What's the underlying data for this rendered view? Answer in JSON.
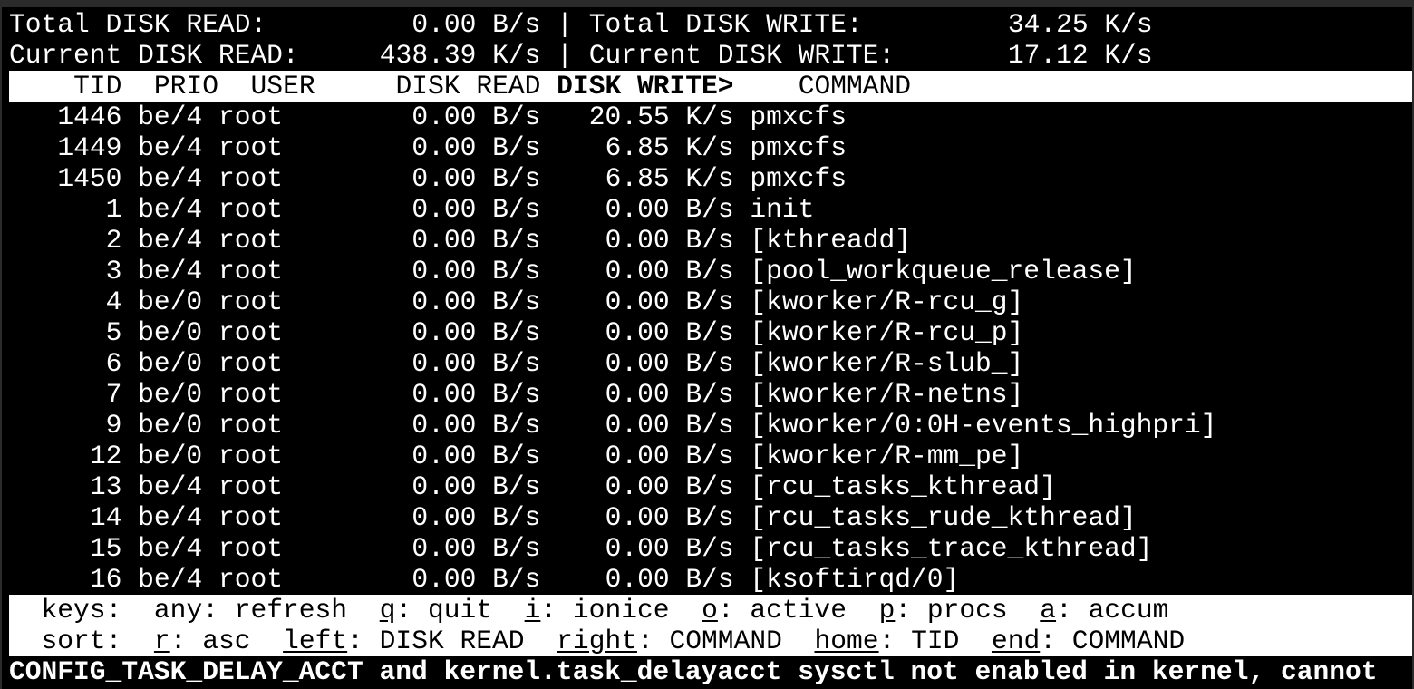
{
  "summary": {
    "total_read_label": "Total DISK READ:",
    "total_read": "0.00 B/s",
    "total_write_label": "Total DISK WRITE:",
    "total_write": "34.25 K/s",
    "current_read_label": "Current DISK READ:",
    "current_read": "438.39 K/s",
    "current_write_label": "Current DISK WRITE:",
    "current_write": "17.12 K/s",
    "separator": "|"
  },
  "columns": {
    "tid": "TID",
    "prio": "PRIO",
    "user": "USER",
    "read": "DISK READ",
    "write": "DISK WRITE>",
    "command": "COMMAND"
  },
  "rows": [
    {
      "tid": "1446",
      "prio": "be/4",
      "user": "root",
      "read": "0.00 B/s",
      "write": "20.55 K/s",
      "command": "pmxcfs"
    },
    {
      "tid": "1449",
      "prio": "be/4",
      "user": "root",
      "read": "0.00 B/s",
      "write": "6.85 K/s",
      "command": "pmxcfs"
    },
    {
      "tid": "1450",
      "prio": "be/4",
      "user": "root",
      "read": "0.00 B/s",
      "write": "6.85 K/s",
      "command": "pmxcfs"
    },
    {
      "tid": "1",
      "prio": "be/4",
      "user": "root",
      "read": "0.00 B/s",
      "write": "0.00 B/s",
      "command": "init"
    },
    {
      "tid": "2",
      "prio": "be/4",
      "user": "root",
      "read": "0.00 B/s",
      "write": "0.00 B/s",
      "command": "[kthreadd]"
    },
    {
      "tid": "3",
      "prio": "be/4",
      "user": "root",
      "read": "0.00 B/s",
      "write": "0.00 B/s",
      "command": "[pool_workqueue_release]"
    },
    {
      "tid": "4",
      "prio": "be/0",
      "user": "root",
      "read": "0.00 B/s",
      "write": "0.00 B/s",
      "command": "[kworker/R-rcu_g]"
    },
    {
      "tid": "5",
      "prio": "be/0",
      "user": "root",
      "read": "0.00 B/s",
      "write": "0.00 B/s",
      "command": "[kworker/R-rcu_p]"
    },
    {
      "tid": "6",
      "prio": "be/0",
      "user": "root",
      "read": "0.00 B/s",
      "write": "0.00 B/s",
      "command": "[kworker/R-slub_]"
    },
    {
      "tid": "7",
      "prio": "be/0",
      "user": "root",
      "read": "0.00 B/s",
      "write": "0.00 B/s",
      "command": "[kworker/R-netns]"
    },
    {
      "tid": "9",
      "prio": "be/0",
      "user": "root",
      "read": "0.00 B/s",
      "write": "0.00 B/s",
      "command": "[kworker/0:0H-events_highpri]"
    },
    {
      "tid": "12",
      "prio": "be/0",
      "user": "root",
      "read": "0.00 B/s",
      "write": "0.00 B/s",
      "command": "[kworker/R-mm_pe]"
    },
    {
      "tid": "13",
      "prio": "be/4",
      "user": "root",
      "read": "0.00 B/s",
      "write": "0.00 B/s",
      "command": "[rcu_tasks_kthread]"
    },
    {
      "tid": "14",
      "prio": "be/4",
      "user": "root",
      "read": "0.00 B/s",
      "write": "0.00 B/s",
      "command": "[rcu_tasks_rude_kthread]"
    },
    {
      "tid": "15",
      "prio": "be/4",
      "user": "root",
      "read": "0.00 B/s",
      "write": "0.00 B/s",
      "command": "[rcu_tasks_trace_kthread]"
    },
    {
      "tid": "16",
      "prio": "be/4",
      "user": "root",
      "read": "0.00 B/s",
      "write": "0.00 B/s",
      "command": "[ksoftirqd/0]"
    }
  ],
  "keys": {
    "label": "keys:",
    "items": [
      {
        "key": "any",
        "desc": ": refresh",
        "underline": false
      },
      {
        "key": "q",
        "desc": ": quit",
        "underline": true
      },
      {
        "key": "i",
        "desc": ": ionice",
        "underline": true
      },
      {
        "key": "o",
        "desc": ": active",
        "underline": true
      },
      {
        "key": "p",
        "desc": ": procs",
        "underline": true
      },
      {
        "key": "a",
        "desc": ": accum",
        "underline": true
      }
    ]
  },
  "sort": {
    "label": "sort:",
    "items": [
      {
        "key": "r",
        "desc": ": asc",
        "underline": true
      },
      {
        "key": "left",
        "desc": ": DISK READ",
        "underline": true
      },
      {
        "key": "right",
        "desc": ": COMMAND",
        "underline": true
      },
      {
        "key": "home",
        "desc": ": TID",
        "underline": true
      },
      {
        "key": "end",
        "desc": ": COMMAND",
        "underline": true
      }
    ]
  },
  "warning": "CONFIG_TASK_DELAY_ACCT and kernel.task_delayacct sysctl not enabled in kernel, cannot",
  "colors": {
    "background": "#000000",
    "foreground": "#ffffff",
    "frame": "#2b2b2b"
  }
}
